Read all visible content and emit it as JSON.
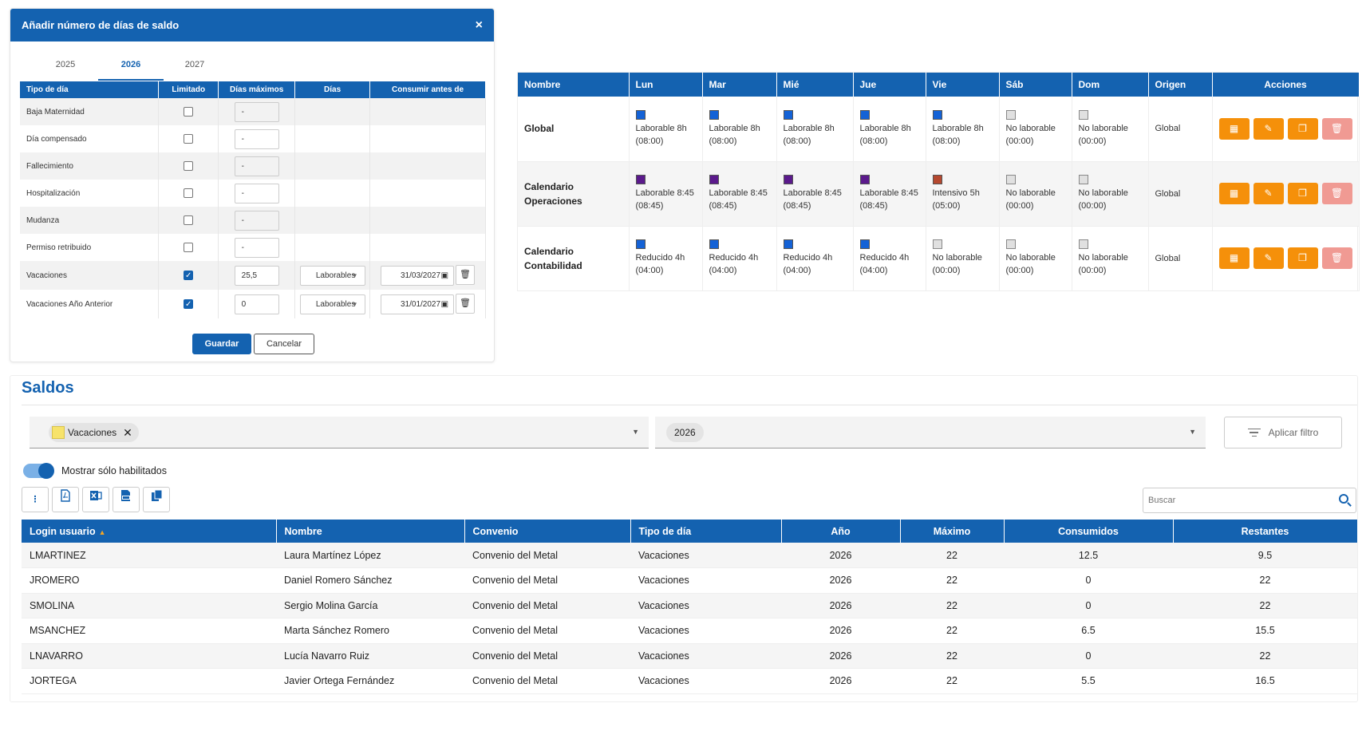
{
  "dialog": {
    "title": "Añadir número de días de saldo",
    "close_icon": "×",
    "tabs": [
      "2025",
      "2026",
      "2027"
    ],
    "active_tab": "2026",
    "columns": [
      "Tipo de día",
      "Limitado",
      "Días máximos",
      "Días",
      "Consumir antes de"
    ],
    "rows": [
      {
        "tipo": "Baja Maternidad",
        "limitado": false,
        "max": "-",
        "dias": "",
        "fecha": ""
      },
      {
        "tipo": "Día compensado",
        "limitado": false,
        "max": "-",
        "dias": "",
        "fecha": ""
      },
      {
        "tipo": "Fallecimiento",
        "limitado": false,
        "max": "-",
        "dias": "",
        "fecha": ""
      },
      {
        "tipo": "Hospitalización",
        "limitado": false,
        "max": "-",
        "dias": "",
        "fecha": ""
      },
      {
        "tipo": "Mudanza",
        "limitado": false,
        "max": "-",
        "dias": "",
        "fecha": ""
      },
      {
        "tipo": "Permiso retribuido",
        "limitado": false,
        "max": "-",
        "dias": "",
        "fecha": ""
      },
      {
        "tipo": "Vacaciones",
        "limitado": true,
        "max": "25,5",
        "dias": "Laborables",
        "fecha": "31/03/2027"
      },
      {
        "tipo": "Vacaciones Año Anterior",
        "limitado": true,
        "max": "0",
        "dias": "Laborables",
        "fecha": "31/01/2027"
      }
    ],
    "save_label": "Guardar",
    "cancel_label": "Cancelar"
  },
  "calendars": {
    "columns": [
      "Nombre",
      "Lun",
      "Mar",
      "Mié",
      "Jue",
      "Vie",
      "Sáb",
      "Dom",
      "Origen",
      "Acciones"
    ],
    "colors": {
      "blue": "#1462d6",
      "purple": "#5b1a8c",
      "brown": "#b5482f",
      "grey": "#e0e0e0",
      "action": "#f5900a",
      "action_delete": "#f09a93"
    },
    "rows": [
      {
        "name": "Global",
        "origen": "Global",
        "days": [
          {
            "color": "blue",
            "label": "Laborable 8h",
            "hours": "(08:00)"
          },
          {
            "color": "blue",
            "label": "Laborable 8h",
            "hours": "(08:00)"
          },
          {
            "color": "blue",
            "label": "Laborable 8h",
            "hours": "(08:00)"
          },
          {
            "color": "blue",
            "label": "Laborable 8h",
            "hours": "(08:00)"
          },
          {
            "color": "blue",
            "label": "Laborable 8h",
            "hours": "(08:00)"
          },
          {
            "color": "grey",
            "label": "No laborable",
            "hours": "(00:00)"
          },
          {
            "color": "grey",
            "label": "No laborable",
            "hours": "(00:00)"
          }
        ]
      },
      {
        "name": "Calendario Operaciones",
        "origen": "Global",
        "days": [
          {
            "color": "purple",
            "label": "Laborable 8:45",
            "hours": "(08:45)"
          },
          {
            "color": "purple",
            "label": "Laborable 8:45",
            "hours": "(08:45)"
          },
          {
            "color": "purple",
            "label": "Laborable 8:45",
            "hours": "(08:45)"
          },
          {
            "color": "purple",
            "label": "Laborable 8:45",
            "hours": "(08:45)"
          },
          {
            "color": "brown",
            "label": "Intensivo 5h",
            "hours": "(05:00)"
          },
          {
            "color": "grey",
            "label": "No laborable",
            "hours": "(00:00)"
          },
          {
            "color": "grey",
            "label": "No laborable",
            "hours": "(00:00)"
          }
        ]
      },
      {
        "name": "Calendario Contabilidad",
        "origen": "Global",
        "days": [
          {
            "color": "blue",
            "label": "Reducido 4h",
            "hours": "(04:00)"
          },
          {
            "color": "blue",
            "label": "Reducido 4h",
            "hours": "(04:00)"
          },
          {
            "color": "blue",
            "label": "Reducido 4h",
            "hours": "(04:00)"
          },
          {
            "color": "blue",
            "label": "Reducido 4h",
            "hours": "(04:00)"
          },
          {
            "color": "grey",
            "label": "No laborable",
            "hours": "(00:00)"
          },
          {
            "color": "grey",
            "label": "No laborable",
            "hours": "(00:00)"
          },
          {
            "color": "grey",
            "label": "No laborable",
            "hours": "(00:00)"
          }
        ]
      }
    ],
    "action_icons": [
      "calendar-icon",
      "edit-icon",
      "copy-icon",
      "trash-icon"
    ]
  },
  "saldos": {
    "title": "Saldos",
    "filter": {
      "tipo_chip": "Vacaciones",
      "year": "2026",
      "apply_label": "Aplicar filtro"
    },
    "toggle_label": "Mostrar sólo habilitados",
    "toolbar_icons": [
      "more-vertical-icon",
      "pdf-icon",
      "excel-icon",
      "csv-icon",
      "copy-icon"
    ],
    "search_placeholder": "Buscar",
    "columns": [
      "Login usuario",
      "Nombre",
      "Convenio",
      "Tipo de día",
      "Año",
      "Máximo",
      "Consumidos",
      "Restantes"
    ],
    "sorted_column": "Login usuario",
    "rows": [
      {
        "login": "LMARTINEZ",
        "nombre": "Laura Martínez López",
        "convenio": "Convenio del Metal",
        "tipo": "Vacaciones",
        "anio": "2026",
        "max": "22",
        "consumidos": "12.5",
        "restantes": "9.5"
      },
      {
        "login": "JROMERO",
        "nombre": "Daniel Romero Sánchez",
        "convenio": "Convenio del Metal",
        "tipo": "Vacaciones",
        "anio": "2026",
        "max": "22",
        "consumidos": "0",
        "restantes": "22"
      },
      {
        "login": "SMOLINA",
        "nombre": "Sergio Molina García",
        "convenio": "Convenio del Metal",
        "tipo": "Vacaciones",
        "anio": "2026",
        "max": "22",
        "consumidos": "0",
        "restantes": "22"
      },
      {
        "login": "MSANCHEZ",
        "nombre": "Marta Sánchez Romero",
        "convenio": "Convenio del Metal",
        "tipo": "Vacaciones",
        "anio": "2026",
        "max": "22",
        "consumidos": "6.5",
        "restantes": "15.5"
      },
      {
        "login": "LNAVARRO",
        "nombre": "Lucía Navarro Ruiz",
        "convenio": "Convenio del Metal",
        "tipo": "Vacaciones",
        "anio": "2026",
        "max": "22",
        "consumidos": "0",
        "restantes": "22"
      },
      {
        "login": "JORTEGA",
        "nombre": "Javier Ortega Fernández",
        "convenio": "Convenio del Metal",
        "tipo": "Vacaciones",
        "anio": "2026",
        "max": "22",
        "consumidos": "5.5",
        "restantes": "16.5"
      }
    ]
  }
}
